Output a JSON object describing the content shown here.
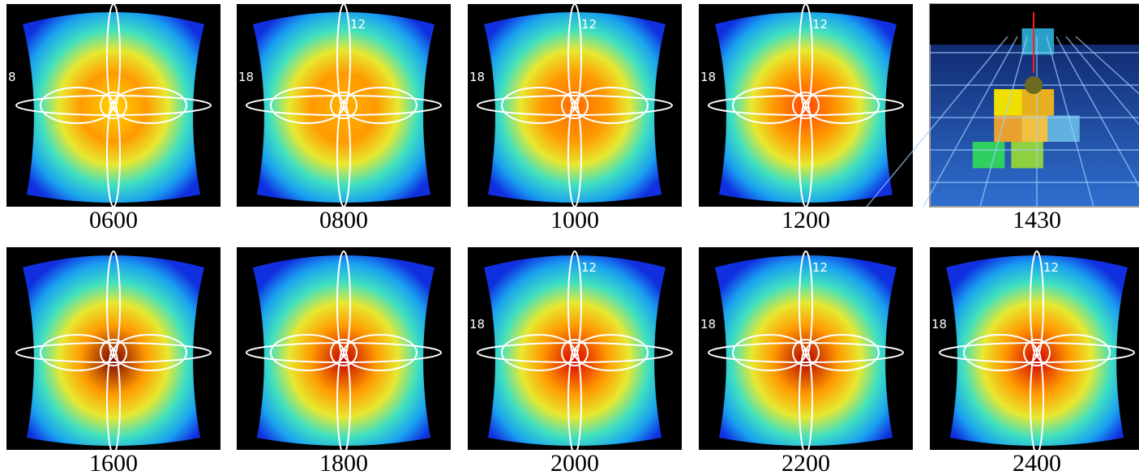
{
  "panels": [
    {
      "caption": "0600",
      "left_label": "8"
    },
    {
      "caption": "0800",
      "top_label": "12",
      "left_label": "18"
    },
    {
      "caption": "1000",
      "top_label": "12",
      "left_label": "18"
    },
    {
      "caption": "1200",
      "top_label": "12",
      "left_label": "18"
    },
    {
      "caption": "1430"
    },
    {
      "caption": "1600"
    },
    {
      "caption": "1800"
    },
    {
      "caption": "2000",
      "top_label": "12",
      "left_label": "18"
    },
    {
      "caption": "2200",
      "top_label": "12",
      "left_label": "18"
    },
    {
      "caption": "2400",
      "top_label": "12",
      "left_label": "18"
    }
  ]
}
